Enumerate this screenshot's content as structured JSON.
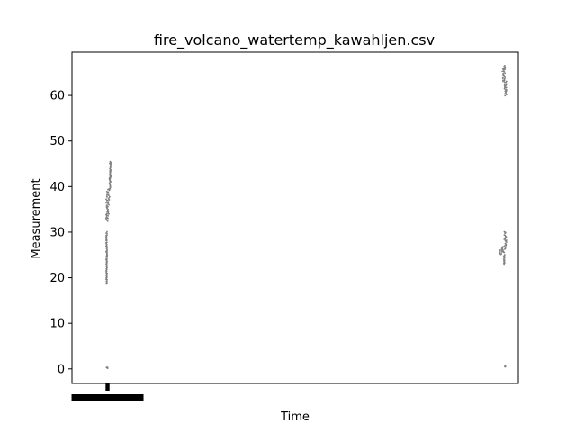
{
  "chart_data": {
    "type": "scatter",
    "title": "fire_volcano_watertemp_kawahljen.csv",
    "xlabel": "Time",
    "ylabel": "Measurement",
    "ylim": [
      -3.2,
      69.5
    ],
    "xlim": [
      -9.0,
      116.5
    ],
    "yticks": [
      0,
      10,
      20,
      30,
      40,
      50,
      60
    ],
    "grid": false,
    "legend": "none",
    "marker_color": "#808080",
    "series": [
      {
        "clusters": [
          {
            "x": [
              0.6,
              1.2
            ],
            "y": [
              0.2,
              0.2
            ]
          },
          {
            "x": [
              0.5,
              1.2
            ],
            "y": [
              32.5,
              34
            ]
          },
          {
            "x": [
              0.5,
              1.4
            ],
            "y": [
              34,
              36
            ]
          },
          {
            "x": [
              0.6,
              1.6
            ],
            "y": [
              36,
              38
            ]
          },
          {
            "x": [
              0.8,
              1.8
            ],
            "y": [
              38,
              39.5
            ]
          },
          {
            "x": [
              1.5,
              1.9
            ],
            "y": [
              39.5,
              42
            ]
          },
          {
            "x": [
              1.6,
              2.0
            ],
            "y": [
              42,
              45.5
            ]
          },
          {
            "x": [
              0.6,
              0.9
            ],
            "y": [
              18.5,
              30
            ]
          },
          {
            "x": [
              112.5,
              113.2
            ],
            "y": [
              0.6,
              0.6
            ]
          },
          {
            "x": [
              111.0,
              112.0
            ],
            "y": [
              25,
              26.5
            ]
          },
          {
            "x": [
              112.0,
              112.9
            ],
            "y": [
              25.5,
              27
            ]
          },
          {
            "x": [
              112.5,
              113.2
            ],
            "y": [
              27,
              30
            ]
          },
          {
            "x": [
              112.3,
              112.7
            ],
            "y": [
              23,
              25
            ]
          },
          {
            "x": [
              112.0,
              112.8
            ],
            "y": [
              63,
              66.5
            ]
          },
          {
            "x": [
              112.5,
              113.2
            ],
            "y": [
              60,
              63
            ]
          }
        ]
      }
    ]
  }
}
